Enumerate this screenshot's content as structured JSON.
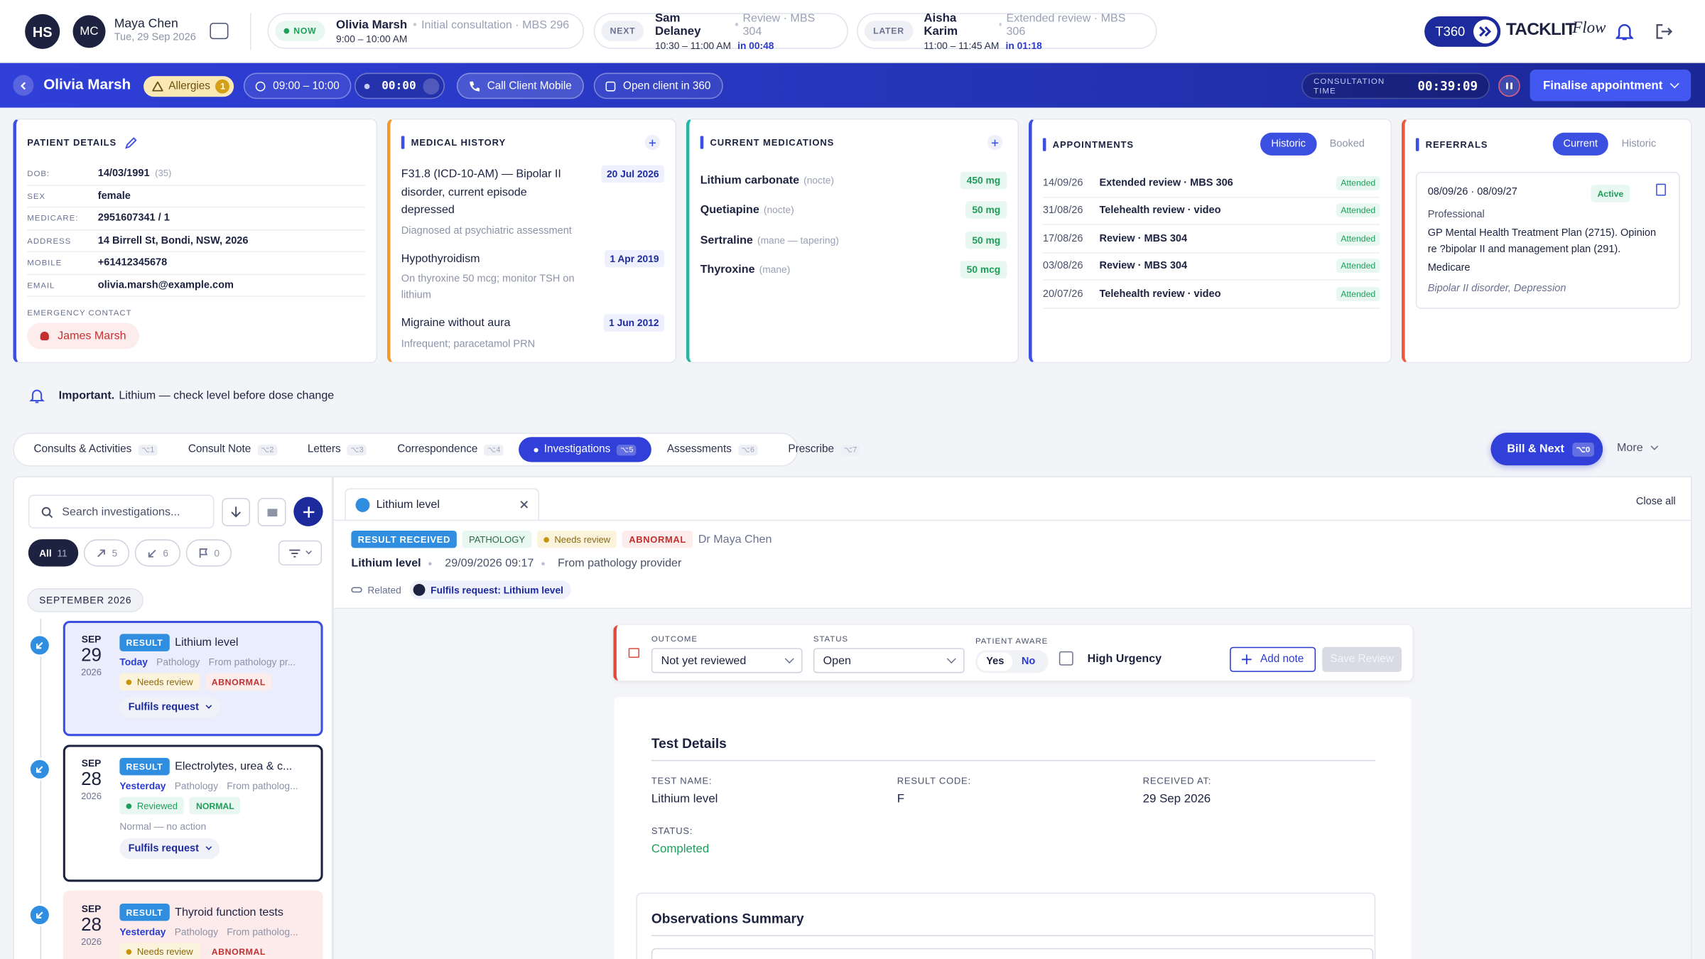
{
  "topbar": {
    "user_initials": "HS",
    "doctor": {
      "initials": "MC",
      "name": "Maya Chen",
      "date": "Tue, 29 Sep 2026"
    },
    "queue": [
      {
        "tag": "NOW",
        "name": "Olivia Marsh",
        "detail": "Initial consultation · MBS 296",
        "time": "9:00 – 10:00 AM"
      },
      {
        "tag": "NEXT",
        "name": "Sam Delaney",
        "detail": "Review · MBS 304",
        "time": "10:30 – 11:00 AM",
        "eta": "in 00:48"
      },
      {
        "tag": "LATER",
        "name": "Aisha Karim",
        "detail": "Extended review · MBS 306",
        "time": "11:00 – 11:45 AM",
        "eta": "in 01:18"
      }
    ],
    "brand": {
      "badge": "T360",
      "name": "TACKLIT",
      "script": "Flow"
    }
  },
  "patient_bar": {
    "name": "Olivia Marsh",
    "allergies": "Allergies",
    "allergy_count": 1,
    "slot": "09:00 – 10:00",
    "timer": "00:00",
    "call": "Call Client Mobile",
    "open": "Open client in 360",
    "consult_label": "CONSULTATION TIME",
    "consult_time": "00:39:09",
    "finalise": "Finalise appointment"
  },
  "patient_details": {
    "title": "PATIENT DETAILS",
    "fields": [
      {
        "label": "DOB:",
        "value": "14/03/1991",
        "extra": "(35)"
      },
      {
        "label": "SEX",
        "value": "female"
      },
      {
        "label": "MEDICARE:",
        "value": "2951607341 / 1"
      },
      {
        "label": "ADDRESS",
        "value": "14 Birrell St, Bondi, NSW, 2026"
      },
      {
        "label": "MOBILE",
        "value": "+61412345678"
      },
      {
        "label": "EMAIL",
        "value": "olivia.marsh@example.com"
      }
    ],
    "emergency_label": "EMERGENCY CONTACT",
    "emergency_name": "James Marsh"
  },
  "medical_history": {
    "title": "MEDICAL HISTORY",
    "items": [
      {
        "name": "F31.8 (ICD-10-AM) — Bipolar II disorder, current episode depressed",
        "date": "20 Jul 2026",
        "note": "Diagnosed at psychiatric assessment"
      },
      {
        "name": "Hypothyroidism",
        "date": "1 Apr 2019",
        "note": "On thyroxine 50 mcg; monitor TSH on lithium"
      },
      {
        "name": "Migraine without aura",
        "date": "1 Jun 2012",
        "note": "Infrequent; paracetamol PRN"
      }
    ]
  },
  "medications": {
    "title": "CURRENT MEDICATIONS",
    "items": [
      {
        "name": "Lithium carbonate",
        "timing": "(nocte)",
        "dose": "450 mg"
      },
      {
        "name": "Quetiapine",
        "timing": "(nocte)",
        "dose": "50 mg"
      },
      {
        "name": "Sertraline",
        "timing": "(mane — tapering)",
        "dose": "50 mg"
      },
      {
        "name": "Thyroxine",
        "timing": "(mane)",
        "dose": "50 mcg"
      }
    ]
  },
  "appointments": {
    "title": "APPOINTMENTS",
    "tabs": [
      "Historic",
      "Booked"
    ],
    "items": [
      {
        "date": "14/09/26",
        "type": "Extended review · MBS 306",
        "status": "Attended"
      },
      {
        "date": "31/08/26",
        "type": "Telehealth review · video",
        "status": "Attended"
      },
      {
        "date": "17/08/26",
        "type": "Review · MBS 304",
        "status": "Attended"
      },
      {
        "date": "03/08/26",
        "type": "Review · MBS 304",
        "status": "Attended"
      },
      {
        "date": "20/07/26",
        "type": "Telehealth review · video",
        "status": "Attended"
      }
    ]
  },
  "referrals": {
    "title": "REFERRALS",
    "tabs": [
      "Current",
      "Historic"
    ],
    "card": {
      "dates": "08/09/26 · 08/09/27",
      "status": "Active",
      "type": "Professional",
      "description": "GP Mental Health Treatment Plan (2715). Opinion re ?bipolar II and management plan (291).",
      "funding": "Medicare",
      "conditions": "Bipolar II disorder, Depression"
    }
  },
  "alert": {
    "label": "Important.",
    "text": "Lithium — check level before dose change"
  },
  "tabs": [
    {
      "label": "Consults & Activities",
      "key": "⌥1"
    },
    {
      "label": "Consult Note",
      "key": "⌥2"
    },
    {
      "label": "Letters",
      "key": "⌥3"
    },
    {
      "label": "Correspondence",
      "key": "⌥4"
    },
    {
      "label": "Investigations",
      "key": "⌥5"
    },
    {
      "label": "Assessments",
      "key": "⌥6"
    },
    {
      "label": "Prescribe",
      "key": "⌥7"
    }
  ],
  "bill": {
    "label": "Bill & Next",
    "key": "⌥0"
  },
  "more": "More",
  "investigations": {
    "search": "Search investigations...",
    "filters": [
      {
        "label": "All",
        "count": 11
      },
      {
        "count": 5
      },
      {
        "count": 6
      },
      {
        "count": 0
      }
    ],
    "month": "SEPTEMBER 2026",
    "items": [
      {
        "month": "SEP",
        "day": 29,
        "year": 2026,
        "kind": "RESULT",
        "name": "Lithium level",
        "when": "Today",
        "source": "Pathology",
        "from": "From pathology pr...",
        "review": "Needs review",
        "flag": "ABNORMAL",
        "link": "Fulfils request"
      },
      {
        "month": "SEP",
        "day": 28,
        "year": 2026,
        "kind": "RESULT",
        "name": "Electrolytes, urea & c...",
        "when": "Yesterday",
        "source": "Pathology",
        "from": "From patholog...",
        "review": "Reviewed",
        "flag": "NORMAL",
        "note": "Normal — no action",
        "link": "Fulfils request"
      },
      {
        "month": "SEP",
        "day": 28,
        "year": 2026,
        "kind": "RESULT",
        "name": "Thyroid function tests",
        "when": "Yesterday",
        "source": "Pathology",
        "from": "From patholog...",
        "review": "Needs review",
        "flag": "ABNORMAL"
      }
    ]
  },
  "detail": {
    "tab": "Lithium level",
    "close_all": "Close all",
    "badges": {
      "received": "RESULT RECEIVED",
      "type": "PATHOLOGY",
      "review": "Needs review",
      "flag": "ABNORMAL",
      "doctor": "Dr Maya Chen"
    },
    "name": "Lithium level",
    "datetime": "29/09/2026 09:17",
    "source": "From pathology provider",
    "related_label": "Related",
    "related": "Fulfils request: Lithium level",
    "review": {
      "outcome_label": "OUTCOME",
      "outcome": "Not yet reviewed",
      "status_label": "STATUS",
      "status": "Open",
      "aware_label": "PATIENT AWARE",
      "yes": "Yes",
      "no": "No",
      "urgency": "High Urgency",
      "add_note": "Add note",
      "save": "Save Review"
    },
    "test": {
      "title": "Test Details",
      "name_label": "TEST NAME:",
      "name": "Lithium level",
      "code_label": "RESULT CODE:",
      "code": "F",
      "received_label": "RECEIVED AT:",
      "received": "29 Sep 2026",
      "status_label": "STATUS:",
      "status": "Completed"
    },
    "observations": "Observations Summary"
  }
}
